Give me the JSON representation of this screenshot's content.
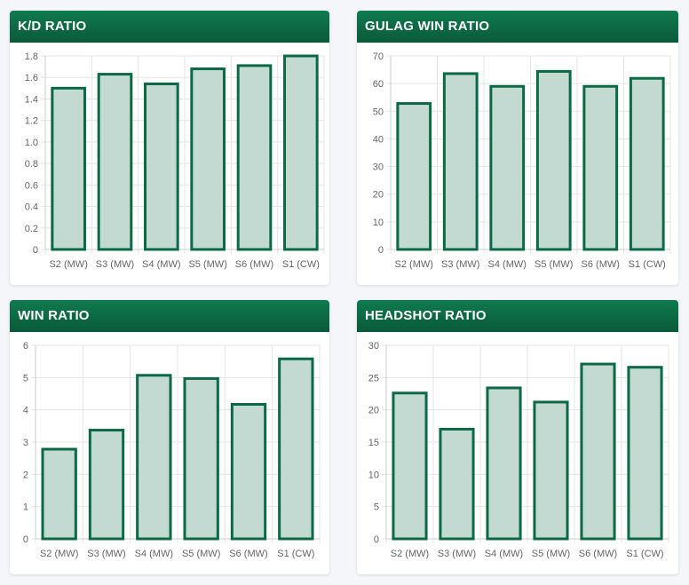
{
  "colors": {
    "bar_fill": "#c3dad3",
    "bar_stroke": "#0b6a45",
    "grid": "#e5e5e5",
    "axis": "#cccccc"
  },
  "charts": [
    {
      "title": "K/D RATIO",
      "chart_data": {
        "type": "bar",
        "categories": [
          "S2 (MW)",
          "S3 (MW)",
          "S4 (MW)",
          "S5 (MW)",
          "S6 (MW)",
          "S1 (CW)"
        ],
        "values": [
          1.5,
          1.63,
          1.54,
          1.68,
          1.71,
          1.8
        ],
        "ylim": [
          0,
          1.8
        ],
        "yticks": [
          "0",
          "0.2",
          "0.4",
          "0.6",
          "0.8",
          "1.0",
          "1.2",
          "1.4",
          "1.6",
          "1.8"
        ],
        "grid": true
      }
    },
    {
      "title": "GULAG WIN RATIO",
      "chart_data": {
        "type": "bar",
        "categories": [
          "S2 (MW)",
          "S3 (MW)",
          "S4 (MW)",
          "S5 (MW)",
          "S6 (MW)",
          "S1 (CW)"
        ],
        "values": [
          52.8,
          63.6,
          59.0,
          64.4,
          59.0,
          61.9
        ],
        "ylim": [
          0,
          70
        ],
        "yticks": [
          "0",
          "10",
          "20",
          "30",
          "40",
          "50",
          "60",
          "70"
        ],
        "grid": true
      }
    },
    {
      "title": "WIN RATIO",
      "chart_data": {
        "type": "bar",
        "categories": [
          "S2 (MW)",
          "S3 (MW)",
          "S4 (MW)",
          "S5 (MW)",
          "S6 (MW)",
          "S1 (CW)"
        ],
        "values": [
          2.78,
          3.37,
          5.07,
          4.97,
          4.17,
          5.58
        ],
        "ylim": [
          0,
          6
        ],
        "yticks": [
          "0",
          "1",
          "2",
          "3",
          "4",
          "5",
          "6"
        ],
        "grid": true
      }
    },
    {
      "title": "HEADSHOT RATIO",
      "chart_data": {
        "type": "bar",
        "categories": [
          "S2 (MW)",
          "S3 (MW)",
          "S4 (MW)",
          "S5 (MW)",
          "S6 (MW)",
          "S1 (CW)"
        ],
        "values": [
          22.6,
          17.0,
          23.4,
          21.2,
          27.1,
          26.6
        ],
        "ylim": [
          0,
          30
        ],
        "yticks": [
          "0",
          "5",
          "10",
          "15",
          "20",
          "25",
          "30"
        ],
        "grid": true
      }
    }
  ]
}
